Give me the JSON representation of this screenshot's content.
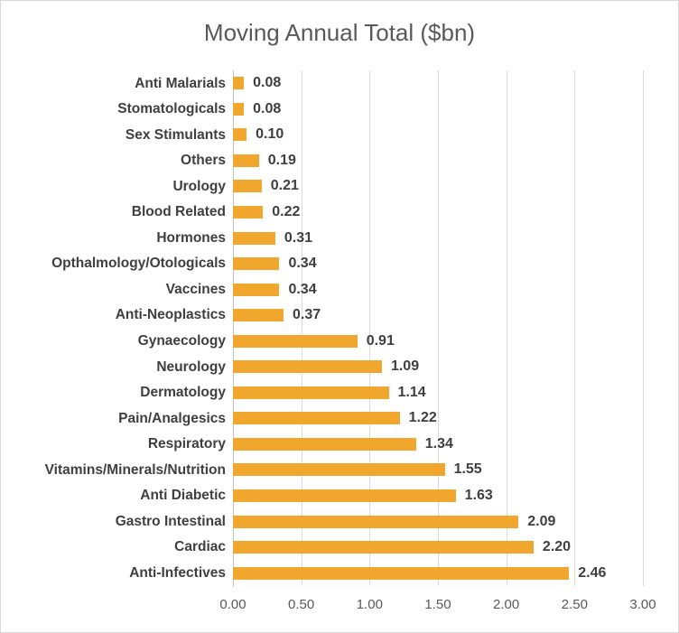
{
  "chart_data": {
    "type": "bar",
    "orientation": "horizontal",
    "title": "Moving Annual Total ($bn)",
    "legend": "none",
    "grid": "vertical-gridlines-on",
    "categories": [
      "Anti Malarials",
      "Stomatologicals",
      "Sex Stimulants",
      "Others",
      "Urology",
      "Blood Related",
      "Hormones",
      "Opthalmology/Otologicals",
      "Vaccines",
      "Anti-Neoplastics",
      "Gynaecology",
      "Neurology",
      "Dermatology",
      "Pain/Analgesics",
      "Respiratory",
      "Vitamins/Minerals/Nutrition",
      "Anti Diabetic",
      "Gastro Intestinal",
      "Cardiac",
      "Anti-Infectives"
    ],
    "values": [
      0.08,
      0.08,
      0.1,
      0.19,
      0.21,
      0.22,
      0.31,
      0.34,
      0.34,
      0.37,
      0.91,
      1.09,
      1.14,
      1.22,
      1.34,
      1.55,
      1.63,
      2.09,
      2.2,
      2.46
    ],
    "value_labels": [
      "0.08",
      "0.08",
      "0.10",
      "0.19",
      "0.21",
      "0.22",
      "0.31",
      "0.34",
      "0.34",
      "0.37",
      "0.91",
      "1.09",
      "1.14",
      "1.22",
      "1.34",
      "1.55",
      "1.63",
      "2.09",
      "2.20",
      "2.46"
    ],
    "xlabel": "",
    "ylabel": "",
    "xlim": [
      0,
      3.0
    ],
    "x_ticks": [
      0,
      0.5,
      1.0,
      1.5,
      2.0,
      2.5,
      3.0
    ],
    "x_tick_labels": [
      "0.00",
      "0.50",
      "1.00",
      "1.50",
      "2.00",
      "2.50",
      "3.00"
    ]
  },
  "colors": {
    "bar_fill": "#F1A72E",
    "gridline": "#D9D9D9",
    "axis_line": "#BFBFBF",
    "title_text": "#595959",
    "tick_text": "#595959",
    "label_text": "#3F3F3F",
    "chart_border": "#D9D9D9",
    "background": "#FFFFFF"
  }
}
